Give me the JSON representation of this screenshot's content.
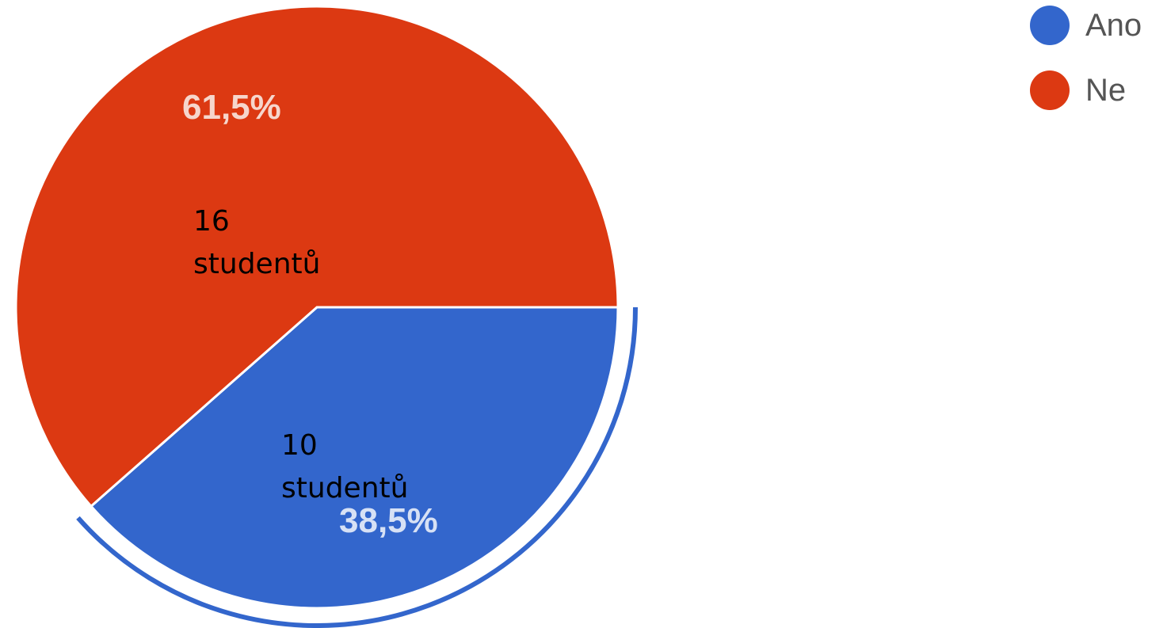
{
  "chart_data": {
    "type": "pie",
    "categories": [
      "Ano",
      "Ne"
    ],
    "values": [
      38.5,
      61.5
    ],
    "counts": [
      10,
      16
    ],
    "data_labels": [
      "38,5%",
      "61,5%"
    ],
    "colors": [
      "#3366cc",
      "#dc3912"
    ],
    "legend_position": "top-right",
    "annotations": [
      {
        "line1": "16",
        "line2": "studentů"
      },
      {
        "line1": "10",
        "line2": "studentů"
      }
    ]
  },
  "legend": {
    "items": [
      {
        "label": "Ano",
        "color": "#3366cc"
      },
      {
        "label": "Ne",
        "color": "#dc3912"
      }
    ]
  }
}
